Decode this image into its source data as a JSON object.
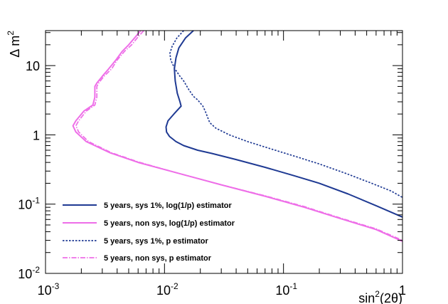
{
  "chart_data": {
    "type": "line",
    "xscale": "log",
    "yscale": "log",
    "xlim": [
      0.001,
      1
    ],
    "ylim": [
      0.01,
      32
    ],
    "xlabel": "sin²(2θ)",
    "ylabel": "Δ m²",
    "x_ticks": [
      {
        "value": 0.001,
        "base": "10",
        "exp": "-3"
      },
      {
        "value": 0.01,
        "base": "10",
        "exp": "-2"
      },
      {
        "value": 0.1,
        "base": "10",
        "exp": "-1"
      },
      {
        "value": 1,
        "base": "1",
        "exp": ""
      }
    ],
    "y_ticks": [
      {
        "value": 0.01,
        "base": "10",
        "exp": "-2"
      },
      {
        "value": 0.1,
        "base": "10",
        "exp": "-1"
      },
      {
        "value": 1,
        "base": "1",
        "exp": ""
      },
      {
        "value": 10,
        "base": "10",
        "exp": ""
      }
    ],
    "colors": {
      "blue": "#1f3a93",
      "magenta": "#ee6ee8"
    },
    "series": [
      {
        "name": "5 years, sys 1%, log(1/p) estimator",
        "color": "#1f3a93",
        "dash": "solid",
        "points": [
          [
            0.0175,
            32
          ],
          [
            0.015,
            25
          ],
          [
            0.0132,
            18
          ],
          [
            0.0125,
            13
          ],
          [
            0.0121,
            9
          ],
          [
            0.0123,
            6
          ],
          [
            0.0128,
            4
          ],
          [
            0.0135,
            3
          ],
          [
            0.0138,
            2.6
          ],
          [
            0.012,
            2.0
          ],
          [
            0.0107,
            1.6
          ],
          [
            0.0103,
            1.3
          ],
          [
            0.0104,
            1.1
          ],
          [
            0.011,
            0.95
          ],
          [
            0.0125,
            0.8
          ],
          [
            0.0145,
            0.7
          ],
          [
            0.019,
            0.6
          ],
          [
            0.025,
            0.54
          ],
          [
            0.04,
            0.44
          ],
          [
            0.07,
            0.34
          ],
          [
            0.12,
            0.26
          ],
          [
            0.2,
            0.2
          ],
          [
            0.35,
            0.14
          ],
          [
            0.6,
            0.095
          ],
          [
            1.0,
            0.065
          ]
        ]
      },
      {
        "name": "5 years, non sys, log(1/p) estimator",
        "color": "#ee6ee8",
        "dash": "solid",
        "points": [
          [
            0.0063,
            32
          ],
          [
            0.0057,
            26
          ],
          [
            0.005,
            20
          ],
          [
            0.0044,
            16
          ],
          [
            0.0039,
            12
          ],
          [
            0.0034,
            9
          ],
          [
            0.003,
            7
          ],
          [
            0.0027,
            5.6
          ],
          [
            0.0026,
            5
          ],
          [
            0.0026,
            3.5
          ],
          [
            0.0025,
            2.7
          ],
          [
            0.0021,
            2.2
          ],
          [
            0.0018,
            1.6
          ],
          [
            0.0017,
            1.35
          ],
          [
            0.0018,
            1.1
          ],
          [
            0.0022,
            0.8
          ],
          [
            0.0035,
            0.55
          ],
          [
            0.006,
            0.4
          ],
          [
            0.012,
            0.29
          ],
          [
            0.03,
            0.19
          ],
          [
            0.07,
            0.13
          ],
          [
            0.15,
            0.09
          ],
          [
            0.3,
            0.062
          ],
          [
            0.6,
            0.043
          ],
          [
            1.0,
            0.029
          ]
        ]
      },
      {
        "name": "5 years, sys 1%, p estimator",
        "color": "#1f3a93",
        "dash": "dotted",
        "points": [
          [
            0.0145,
            32
          ],
          [
            0.0127,
            25
          ],
          [
            0.0116,
            19
          ],
          [
            0.0111,
            15
          ],
          [
            0.0113,
            12
          ],
          [
            0.0122,
            9
          ],
          [
            0.0135,
            7
          ],
          [
            0.0145,
            6
          ],
          [
            0.016,
            4.5
          ],
          [
            0.0175,
            3.6
          ],
          [
            0.019,
            3.2
          ],
          [
            0.021,
            2.6
          ],
          [
            0.022,
            2.2
          ],
          [
            0.023,
            1.8
          ],
          [
            0.024,
            1.5
          ],
          [
            0.027,
            1.25
          ],
          [
            0.035,
            1.0
          ],
          [
            0.05,
            0.8
          ],
          [
            0.08,
            0.62
          ],
          [
            0.13,
            0.48
          ],
          [
            0.2,
            0.38
          ],
          [
            0.33,
            0.28
          ],
          [
            0.55,
            0.2
          ],
          [
            0.8,
            0.155
          ],
          [
            1.0,
            0.125
          ]
        ]
      },
      {
        "name": "5 years, non sys, p estimator",
        "color": "#ee6ee8",
        "dash": "dashdot",
        "points": [
          [
            0.0067,
            32
          ],
          [
            0.006,
            26
          ],
          [
            0.0053,
            20
          ],
          [
            0.0046,
            16
          ],
          [
            0.004,
            12
          ],
          [
            0.0036,
            9
          ],
          [
            0.0031,
            7
          ],
          [
            0.0028,
            5.6
          ],
          [
            0.0027,
            5
          ],
          [
            0.0027,
            3.5
          ],
          [
            0.0026,
            2.7
          ],
          [
            0.0022,
            2.2
          ],
          [
            0.0019,
            1.6
          ],
          [
            0.0018,
            1.35
          ],
          [
            0.0019,
            1.1
          ],
          [
            0.0023,
            0.8
          ],
          [
            0.0036,
            0.55
          ],
          [
            0.0062,
            0.4
          ],
          [
            0.012,
            0.29
          ],
          [
            0.03,
            0.19
          ],
          [
            0.07,
            0.132
          ],
          [
            0.15,
            0.092
          ],
          [
            0.3,
            0.063
          ],
          [
            0.6,
            0.044
          ],
          [
            1.0,
            0.03
          ]
        ]
      }
    ]
  }
}
